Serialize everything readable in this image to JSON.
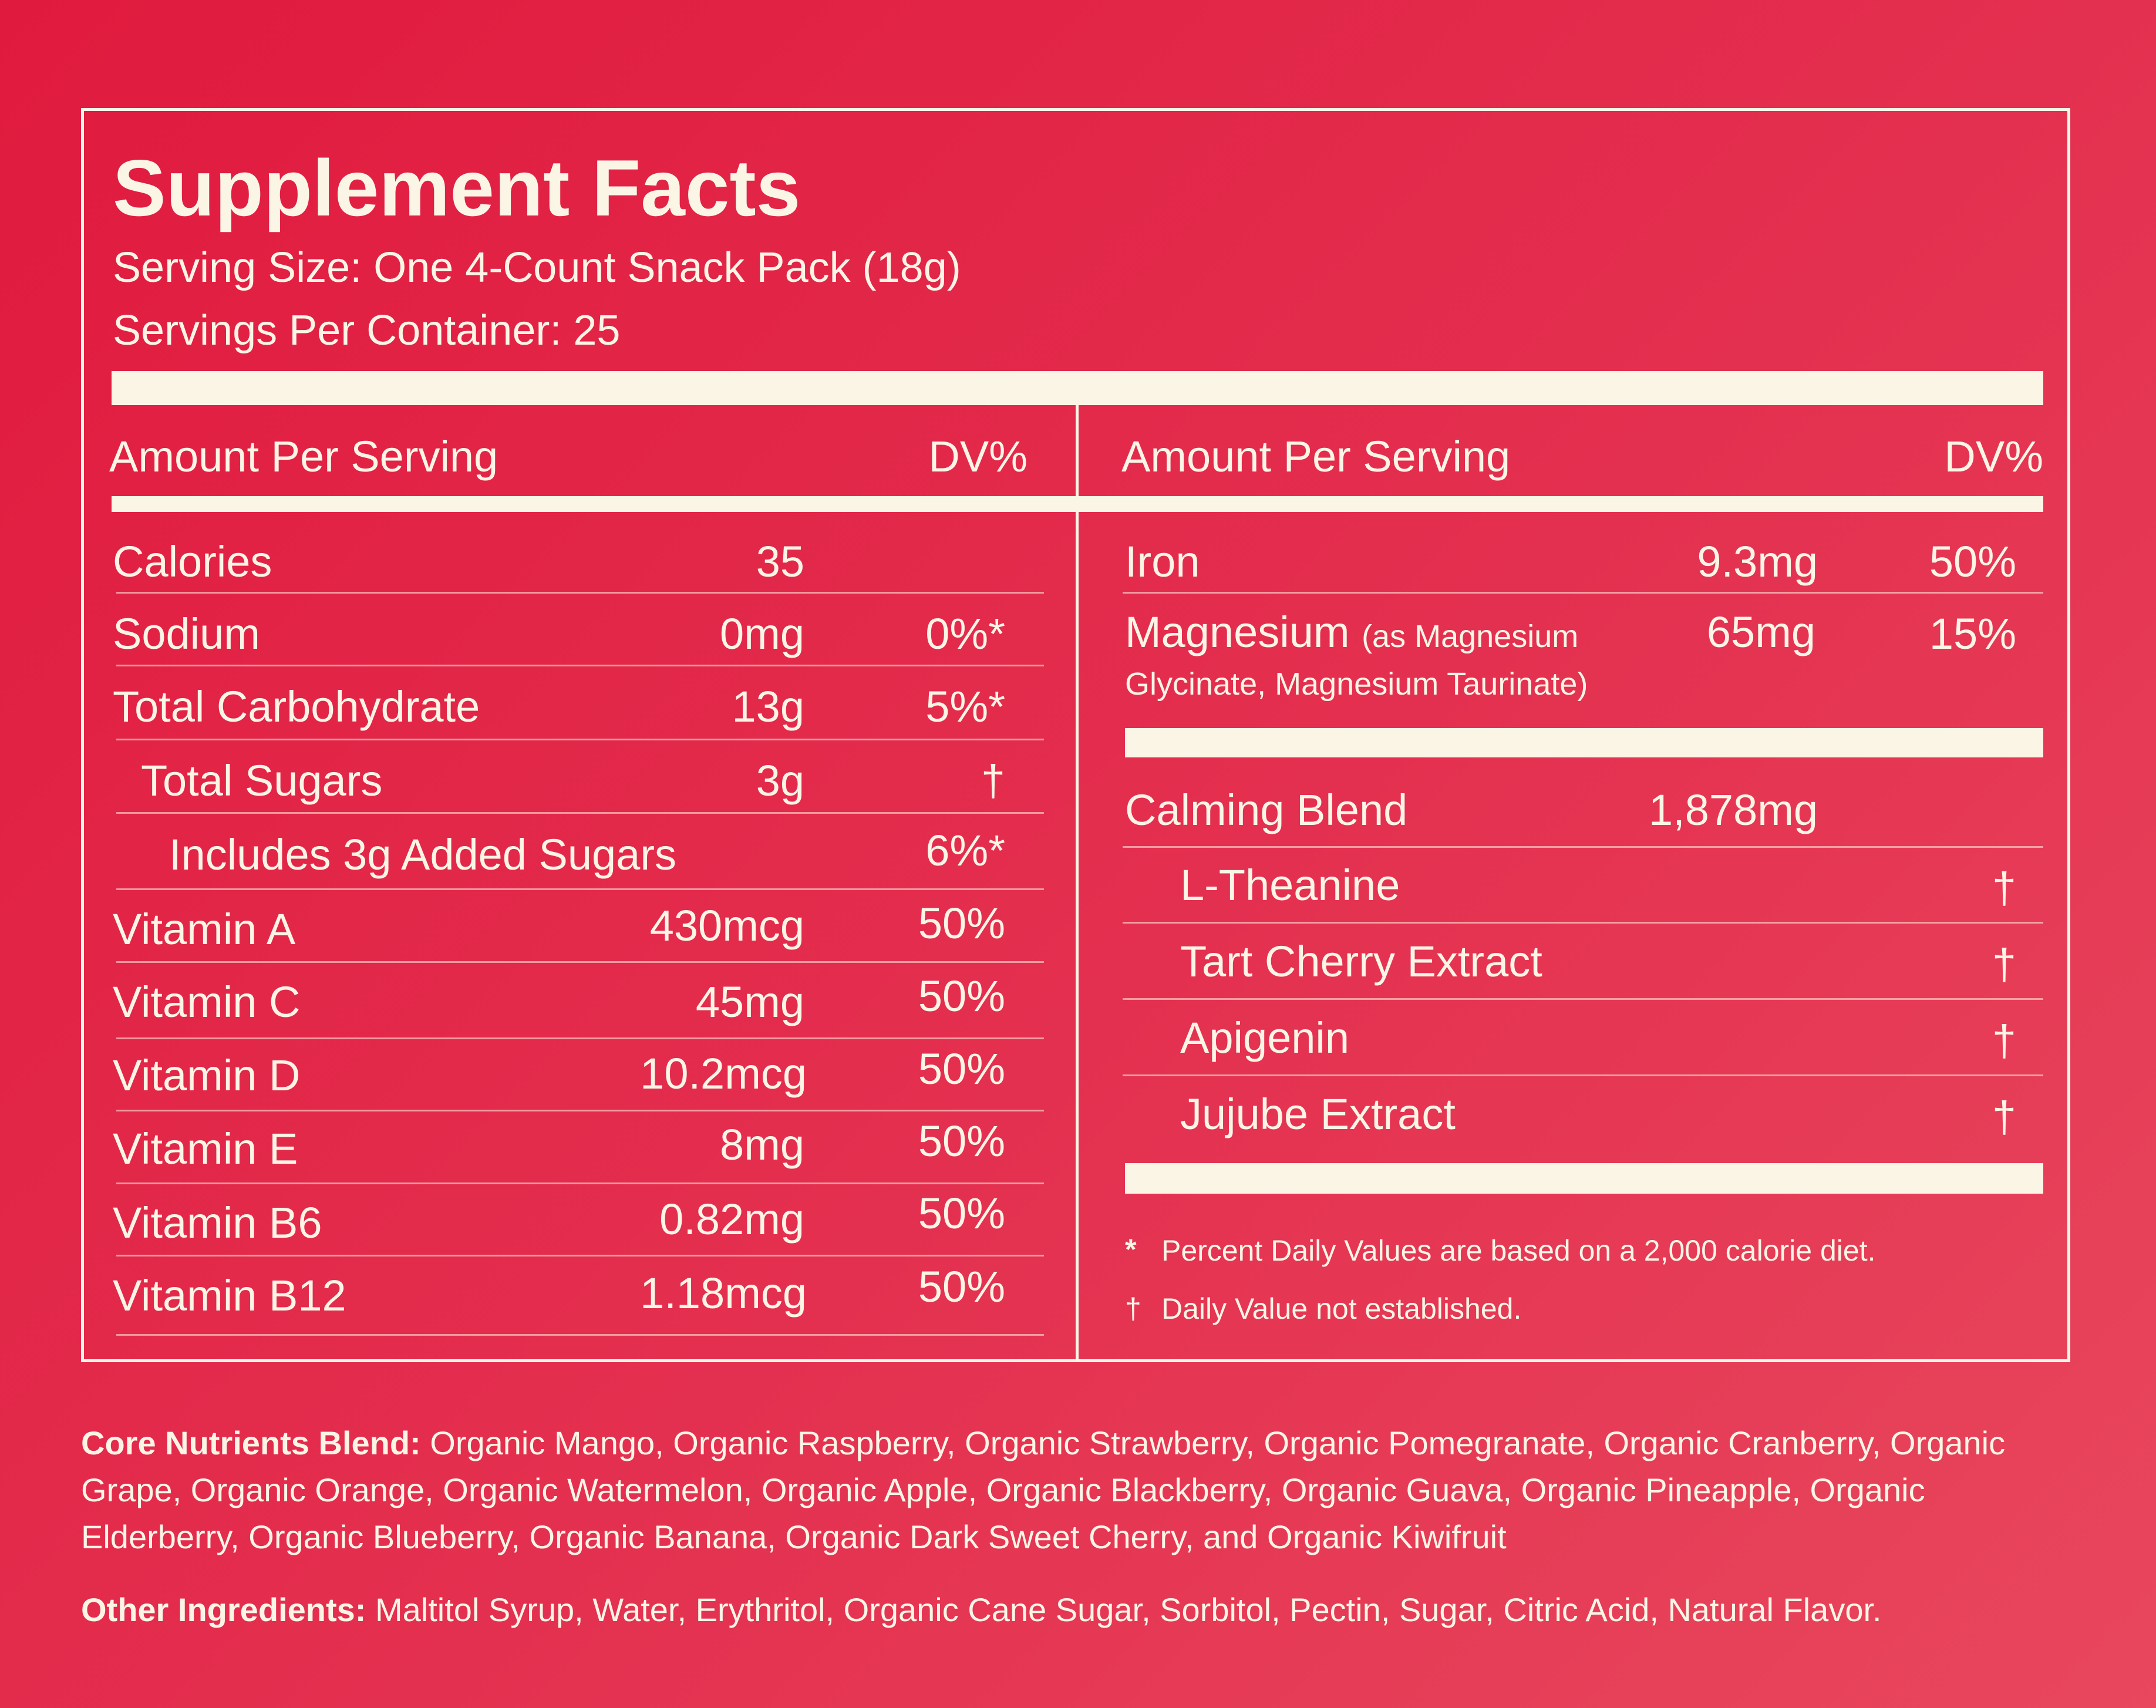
{
  "colors": {
    "background_start": "#e01a3e",
    "background_end": "#e8475d",
    "ink": "#fbf5e6"
  },
  "title": "Supplement Facts",
  "serving_size": "Serving Size: One 4-Count Snack Pack (18g)",
  "servings_per_container": "Servings Per Container: 25",
  "left": {
    "header_amount": "Amount Per Serving",
    "header_dv": "DV%",
    "rows": [
      {
        "name": "Calories",
        "amount": "35",
        "dv": ""
      },
      {
        "name": "Sodium",
        "amount": "0mg",
        "dv": "0%*"
      },
      {
        "name": "Total Carbohydrate",
        "amount": "13g",
        "dv": "5%*"
      },
      {
        "name": "Total Sugars",
        "amount": "3g",
        "dv": "†"
      },
      {
        "name": "Includes 3g Added Sugars",
        "amount": "",
        "dv": "6%*"
      },
      {
        "name": "Vitamin A",
        "amount": "430mcg",
        "dv": "50%"
      },
      {
        "name": "Vitamin C",
        "amount": "45mg",
        "dv": "50%"
      },
      {
        "name": "Vitamin D",
        "amount": "10.2mcg",
        "dv": "50%"
      },
      {
        "name": "Vitamin E",
        "amount": "8mg",
        "dv": "50%"
      },
      {
        "name": "Vitamin B6",
        "amount": "0.82mg",
        "dv": "50%"
      },
      {
        "name": "Vitamin B12",
        "amount": "1.18mcg",
        "dv": "50%"
      }
    ]
  },
  "right": {
    "header_amount": "Amount Per Serving",
    "header_dv": "DV%",
    "iron": {
      "name": "Iron",
      "amount": "9.3mg",
      "dv": "50%"
    },
    "magnesium": {
      "name": "Magnesium",
      "note": "(as Magnesium",
      "note2": "Glycinate, Magnesium Taurinate)",
      "amount": "65mg",
      "dv": "15%"
    },
    "blend": {
      "name": "Calming Blend",
      "amount": "1,878mg"
    },
    "blend_items": [
      {
        "name": "L-Theanine",
        "dv": "†"
      },
      {
        "name": "Tart Cherry Extract",
        "dv": "†"
      },
      {
        "name": "Apigenin",
        "dv": "†"
      },
      {
        "name": "Jujube Extract",
        "dv": "†"
      }
    ],
    "footnote_star_symbol": "*",
    "footnote_star": "Percent Daily Values are based on a 2,000 calorie diet.",
    "footnote_dagger_symbol": "†",
    "footnote_dagger": "Daily Value not established."
  },
  "core_label": "Core Nutrients Blend:",
  "core_text": "Organic Mango, Organic Raspberry, Organic Strawberry, Organic Pomegranate, Organic Cranberry, Organic Grape, Organic Orange, Organic Watermelon, Organic Apple, Organic Blackberry, Organic Guava, Organic Pineapple, Organic Elderberry, Organic Blueberry, Organic Banana, Organic Dark Sweet Cherry, and Organic Kiwifruit",
  "other_label": "Other Ingredients:",
  "other_text": "Maltitol Syrup, Water, Erythritol, Organic Cane Sugar, Sorbitol, Pectin, Sugar, Citric Acid, Natural Flavor."
}
